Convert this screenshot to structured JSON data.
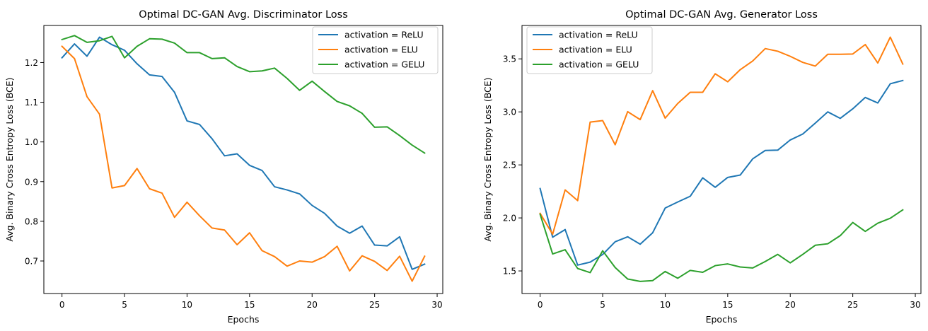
{
  "chart_data": [
    {
      "type": "line",
      "title": "Optimal DC-GAN Avg. Discriminator Loss",
      "xlabel": "Epochs",
      "ylabel": "Avg. Binary Cross Entropy Loss (BCE)",
      "xlim": [
        -1.45,
        30.45
      ],
      "ylim": [
        0.618,
        1.2935
      ],
      "xticks": [
        0,
        5,
        10,
        15,
        20,
        25,
        30
      ],
      "yticks": [
        0.7,
        0.8,
        0.9,
        1.0,
        1.1,
        1.2
      ],
      "xtick_labels": [
        "0",
        "5",
        "10",
        "15",
        "20",
        "25",
        "30"
      ],
      "ytick_labels": [
        "0.7",
        "0.8",
        "0.9",
        "1.0",
        "1.1",
        "1.2"
      ],
      "grid": false,
      "legend_position": "top-right",
      "x": [
        0,
        1,
        2,
        3,
        4,
        5,
        6,
        7,
        8,
        9,
        10,
        11,
        12,
        13,
        14,
        15,
        16,
        17,
        18,
        19,
        20,
        21,
        22,
        23,
        24,
        25,
        26,
        27,
        28,
        29
      ],
      "series": [
        {
          "name": "activation = ReLU",
          "color": "#1f77b4",
          "values": [
            1.212,
            1.247,
            1.216,
            1.264,
            1.245,
            1.231,
            1.197,
            1.169,
            1.165,
            1.125,
            1.053,
            1.044,
            1.008,
            0.965,
            0.97,
            0.941,
            0.928,
            0.887,
            0.879,
            0.869,
            0.84,
            0.82,
            0.788,
            0.77,
            0.788,
            0.74,
            0.738,
            0.761,
            0.679,
            0.692
          ]
        },
        {
          "name": "activation = ELU",
          "color": "#ff7f0e",
          "values": [
            1.241,
            1.21,
            1.114,
            1.07,
            0.884,
            0.89,
            0.933,
            0.882,
            0.871,
            0.81,
            0.848,
            0.814,
            0.783,
            0.778,
            0.741,
            0.771,
            0.726,
            0.711,
            0.687,
            0.7,
            0.697,
            0.711,
            0.737,
            0.675,
            0.713,
            0.699,
            0.676,
            0.712,
            0.649,
            0.712
          ]
        },
        {
          "name": "activation = GELU",
          "color": "#2ca02c",
          "values": [
            1.258,
            1.268,
            1.251,
            1.255,
            1.266,
            1.212,
            1.241,
            1.26,
            1.259,
            1.249,
            1.225,
            1.225,
            1.21,
            1.212,
            1.19,
            1.177,
            1.179,
            1.186,
            1.16,
            1.13,
            1.153,
            1.127,
            1.102,
            1.091,
            1.072,
            1.037,
            1.038,
            1.016,
            0.992,
            0.972
          ]
        }
      ]
    },
    {
      "type": "line",
      "title": "Optimal DC-GAN Avg. Generator Loss",
      "xlabel": "Epochs",
      "ylabel": "Avg. Binary Cross Entropy Loss (BCE)",
      "xlim": [
        -1.45,
        30.45
      ],
      "ylim": [
        1.287,
        3.815
      ],
      "xticks": [
        0,
        5,
        10,
        15,
        20,
        25,
        30
      ],
      "yticks": [
        1.5,
        2.0,
        2.5,
        3.0,
        3.5
      ],
      "xtick_labels": [
        "0",
        "5",
        "10",
        "15",
        "20",
        "25",
        "30"
      ],
      "ytick_labels": [
        "1.5",
        "2.0",
        "2.5",
        "3.0",
        "3.5"
      ],
      "grid": false,
      "legend_position": "top-left",
      "x": [
        0,
        1,
        2,
        3,
        4,
        5,
        6,
        7,
        8,
        9,
        10,
        11,
        12,
        13,
        14,
        15,
        16,
        17,
        18,
        19,
        20,
        21,
        22,
        23,
        24,
        25,
        26,
        27,
        28,
        29
      ],
      "series": [
        {
          "name": "activation = ReLU",
          "color": "#1f77b4",
          "values": [
            2.277,
            1.818,
            1.89,
            1.555,
            1.583,
            1.655,
            1.775,
            1.822,
            1.752,
            1.86,
            2.093,
            2.15,
            2.204,
            2.378,
            2.289,
            2.382,
            2.404,
            2.557,
            2.636,
            2.639,
            2.735,
            2.791,
            2.894,
            3.0,
            2.939,
            3.029,
            3.136,
            3.084,
            3.265,
            3.296
          ]
        },
        {
          "name": "activation = ELU",
          "color": "#ff7f0e",
          "values": [
            2.043,
            1.846,
            2.264,
            2.163,
            2.904,
            2.918,
            2.69,
            3.002,
            2.927,
            3.2,
            2.941,
            3.079,
            3.185,
            3.185,
            3.359,
            3.284,
            3.398,
            3.48,
            3.597,
            3.572,
            3.524,
            3.467,
            3.432,
            3.543,
            3.543,
            3.546,
            3.635,
            3.461,
            3.705,
            3.451
          ]
        },
        {
          "name": "activation = GELU",
          "color": "#2ca02c",
          "values": [
            2.034,
            1.66,
            1.7,
            1.523,
            1.484,
            1.69,
            1.532,
            1.424,
            1.401,
            1.409,
            1.495,
            1.431,
            1.505,
            1.487,
            1.55,
            1.566,
            1.537,
            1.528,
            1.589,
            1.656,
            1.576,
            1.656,
            1.742,
            1.756,
            1.833,
            1.957,
            1.873,
            1.95,
            1.997,
            2.076
          ]
        }
      ]
    }
  ]
}
